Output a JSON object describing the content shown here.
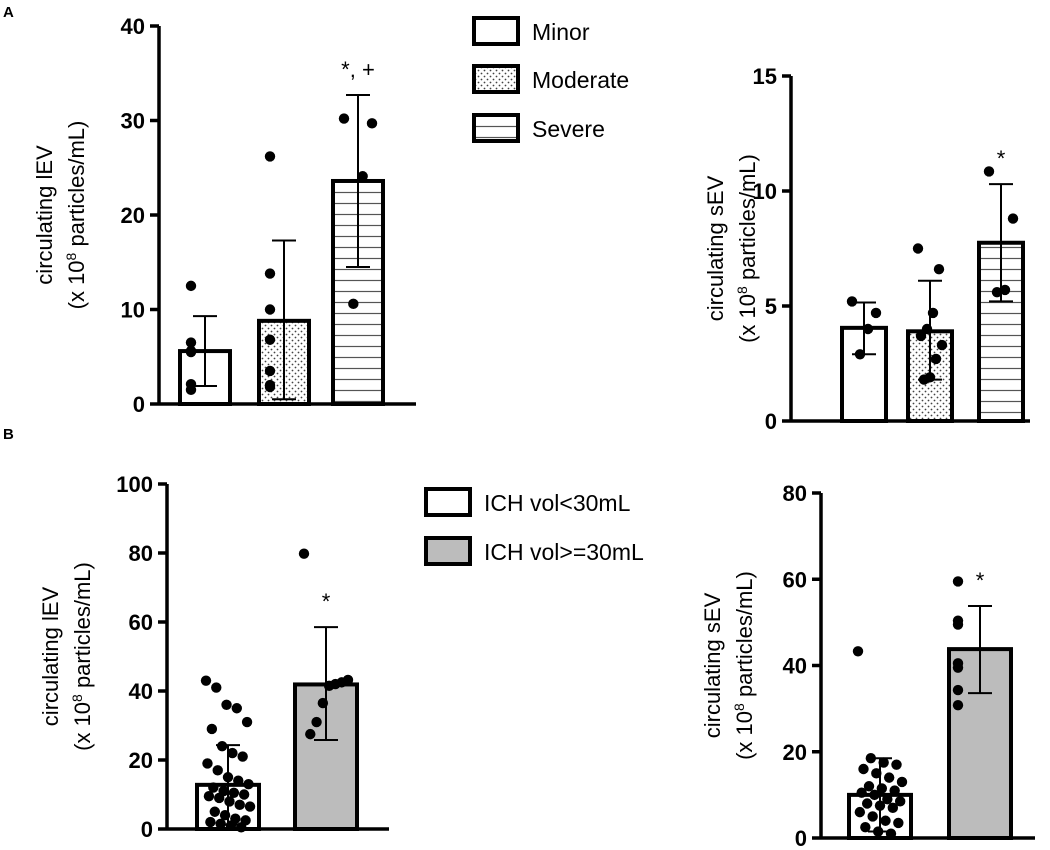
{
  "panel_labels": {
    "a": "A",
    "b": "B"
  },
  "legend_a": [
    {
      "label": "Minor",
      "pattern": "open"
    },
    {
      "label": "Moderate",
      "pattern": "dots"
    },
    {
      "label": "Severe",
      "pattern": "hlines"
    }
  ],
  "legend_b": [
    {
      "label": "ICH vol<30mL",
      "pattern": "open"
    },
    {
      "label": "ICH vol>=30mL",
      "pattern": "gray"
    }
  ],
  "chart_data": [
    {
      "id": "A-left",
      "type": "bar",
      "ylabel_line1": "circulating lEV",
      "ylabel_line2_pre": "(x 10",
      "ylabel_line2_sup": "8",
      "ylabel_line2_post": " particles/mL)",
      "ylim": [
        0,
        40
      ],
      "yticks": [
        0,
        10,
        20,
        30,
        40
      ],
      "categories": [
        "Minor",
        "Moderate",
        "Severe"
      ],
      "series": [
        {
          "pattern": "open",
          "mean": 5.6,
          "sd_upper": 9.3,
          "sd_lower": 1.9,
          "points": [
            12.5,
            6.5,
            5.6,
            5.6,
            5.5,
            2.1,
            1.5
          ],
          "annotation": ""
        },
        {
          "pattern": "dots",
          "mean": 8.8,
          "sd_upper": 17.3,
          "sd_lower": 0.5,
          "points": [
            26.2,
            13.8,
            10.0,
            6.8,
            3.5,
            2.0,
            1.8
          ],
          "annotation": ""
        },
        {
          "pattern": "hlines",
          "mean": 23.6,
          "sd_upper": 32.7,
          "sd_lower": 14.5,
          "points": [
            30.2,
            29.7,
            24.1,
            10.6
          ],
          "annotation": "*, +"
        }
      ]
    },
    {
      "id": "A-right",
      "type": "bar",
      "ylabel_line1": "circulating sEV",
      "ylabel_line2_pre": "(x 10",
      "ylabel_line2_sup": "8",
      "ylabel_line2_post": " particles/mL)",
      "ylim": [
        0,
        15
      ],
      "yticks": [
        0,
        5,
        10,
        15
      ],
      "categories": [
        "Minor",
        "Moderate",
        "Severe"
      ],
      "series": [
        {
          "pattern": "open",
          "mean": 4.05,
          "sd_upper": 5.15,
          "sd_lower": 2.9,
          "points": [
            5.2,
            4.7,
            4.0,
            2.9
          ],
          "annotation": ""
        },
        {
          "pattern": "dots",
          "mean": 3.9,
          "sd_upper": 6.1,
          "sd_lower": 1.8,
          "points": [
            7.5,
            6.6,
            4.7,
            4.0,
            3.7,
            3.3,
            2.7,
            1.9,
            1.8
          ],
          "annotation": ""
        },
        {
          "pattern": "hlines",
          "mean": 7.75,
          "sd_upper": 10.3,
          "sd_lower": 5.2,
          "points": [
            10.85,
            8.8,
            5.7,
            5.6
          ],
          "annotation": "*"
        }
      ]
    },
    {
      "id": "B-left",
      "type": "bar",
      "ylabel_line1": "circulating lEV",
      "ylabel_line2_pre": "(x 10",
      "ylabel_line2_sup": "8",
      "ylabel_line2_post": " particles/mL)",
      "ylim": [
        0,
        100
      ],
      "yticks": [
        0,
        20,
        40,
        60,
        80,
        100
      ],
      "categories": [
        "ICH vol<30mL",
        "ICH vol>=30mL"
      ],
      "series": [
        {
          "pattern": "open",
          "mean": 12.8,
          "sd_upper": 24.3,
          "sd_lower": 1.3,
          "points": [
            43,
            41,
            36,
            35,
            31,
            29,
            24,
            22,
            21,
            19,
            17,
            15,
            14,
            13,
            12,
            11,
            10.5,
            10,
            9.5,
            9,
            8,
            7,
            6.5,
            5,
            4,
            3,
            2.5,
            2,
            1.5,
            1,
            0.5
          ],
          "annotation": ""
        },
        {
          "pattern": "gray",
          "mean": 41.9,
          "sd_upper": 58.5,
          "sd_lower": 25.8,
          "points": [
            79.8,
            43.2,
            42.5,
            42,
            41.5,
            36.5,
            31,
            27.5
          ],
          "annotation": "*"
        }
      ]
    },
    {
      "id": "B-right",
      "type": "bar",
      "ylabel_line1": "circulating sEV",
      "ylabel_line2_pre": "(x 10",
      "ylabel_line2_sup": "8",
      "ylabel_line2_post": " particles/mL)",
      "ylim": [
        0,
        80
      ],
      "yticks": [
        0,
        20,
        40,
        60,
        80
      ],
      "categories": [
        "ICH vol<30mL",
        "ICH vol>=30mL"
      ],
      "series": [
        {
          "pattern": "open",
          "mean": 10.0,
          "sd_upper": 18.5,
          "sd_lower": 1.5,
          "points": [
            43.3,
            18.5,
            17.5,
            17,
            16,
            15,
            14,
            13,
            12,
            11.5,
            11,
            10.5,
            10,
            9,
            8.5,
            8,
            7.5,
            7,
            6,
            5,
            4,
            3.5,
            2.5,
            1.5,
            1
          ],
          "annotation": ""
        },
        {
          "pattern": "gray",
          "mean": 43.8,
          "sd_upper": 53.8,
          "sd_lower": 33.6,
          "points": [
            59.5,
            50.4,
            49.5,
            40.5,
            39.5,
            34.3,
            30.8
          ],
          "annotation": "*"
        }
      ]
    }
  ]
}
